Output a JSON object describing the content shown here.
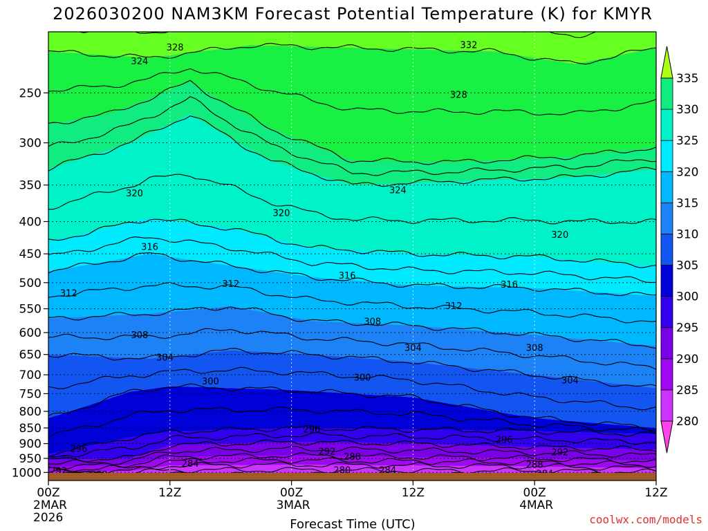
{
  "chart_data": {
    "type": "heatmap",
    "title": "2026030200 NAM3KM Forecast Potential Temperature (K) for KMYR",
    "xlabel": "Forecast Time (UTC)",
    "ylabel": "",
    "units": "K",
    "x_range_hours": [
      0,
      60
    ],
    "y_range_hpa": [
      1030,
      200
    ],
    "y_ticks": [
      250,
      300,
      350,
      400,
      450,
      500,
      550,
      600,
      650,
      700,
      750,
      800,
      850,
      900,
      950,
      1000
    ],
    "x_ticks": [
      {
        "hour": 0,
        "lines": [
          "00Z",
          "2MAR",
          "2026"
        ]
      },
      {
        "hour": 12,
        "lines": [
          "12Z"
        ]
      },
      {
        "hour": 24,
        "lines": [
          "00Z",
          "3MAR"
        ]
      },
      {
        "hour": 36,
        "lines": [
          "12Z"
        ]
      },
      {
        "hour": 48,
        "lines": [
          "00Z",
          "4MAR"
        ]
      },
      {
        "hour": 60,
        "lines": [
          "12Z"
        ]
      }
    ],
    "colorbar": {
      "levels": [
        280,
        285,
        290,
        295,
        300,
        305,
        310,
        315,
        320,
        325,
        330,
        335
      ],
      "colors": [
        "#ff44ee",
        "#cc33ff",
        "#9f08f0",
        "#7a00e8",
        "#3300ee",
        "#0000d8",
        "#1255f0",
        "#1c82f6",
        "#00b8ff",
        "#00eaff",
        "#00f2c8",
        "#11ec80",
        "#18f044",
        "#66ff22",
        "#b0ff18"
      ]
    },
    "contour_labels": [
      {
        "value": "332",
        "hour": 41.5,
        "p": 210
      },
      {
        "value": "328",
        "hour": 12.5,
        "p": 212
      },
      {
        "value": "324",
        "hour": 9,
        "p": 223
      },
      {
        "value": "328",
        "hour": 40.5,
        "p": 252
      },
      {
        "value": "324",
        "hour": 34.5,
        "p": 357
      },
      {
        "value": "320",
        "hour": 8.5,
        "p": 361
      },
      {
        "value": "320",
        "hour": 23,
        "p": 388
      },
      {
        "value": "320",
        "hour": 50.5,
        "p": 420
      },
      {
        "value": "316",
        "hour": 10,
        "p": 439
      },
      {
        "value": "316",
        "hour": 29.5,
        "p": 488
      },
      {
        "value": "316",
        "hour": 45.5,
        "p": 504
      },
      {
        "value": "312",
        "hour": 18,
        "p": 503
      },
      {
        "value": "312",
        "hour": 2,
        "p": 520
      },
      {
        "value": "312",
        "hour": 40,
        "p": 545
      },
      {
        "value": "308",
        "hour": 32,
        "p": 577
      },
      {
        "value": "308",
        "hour": 9,
        "p": 606
      },
      {
        "value": "308",
        "hour": 48,
        "p": 635
      },
      {
        "value": "304",
        "hour": 11.5,
        "p": 658
      },
      {
        "value": "304",
        "hour": 36,
        "p": 635
      },
      {
        "value": "304",
        "hour": 51.5,
        "p": 715
      },
      {
        "value": "300",
        "hour": 16,
        "p": 718
      },
      {
        "value": "300",
        "hour": 31,
        "p": 708
      },
      {
        "value": "296",
        "hour": 26,
        "p": 856
      },
      {
        "value": "296",
        "hour": 3,
        "p": 918
      },
      {
        "value": "296",
        "hour": 45,
        "p": 889
      },
      {
        "value": "292",
        "hour": 50.5,
        "p": 930
      },
      {
        "value": "292",
        "hour": 27.5,
        "p": 928
      },
      {
        "value": "292",
        "hour": 1,
        "p": 995
      },
      {
        "value": "288",
        "hour": 30,
        "p": 945
      },
      {
        "value": "288",
        "hour": 48,
        "p": 973
      },
      {
        "value": "288",
        "hour": 5,
        "p": 1010
      },
      {
        "value": "284",
        "hour": 14,
        "p": 970
      },
      {
        "value": "284",
        "hour": 33.5,
        "p": 993
      },
      {
        "value": "284",
        "hour": 49,
        "p": 1005
      },
      {
        "value": "280",
        "hour": 29,
        "p": 993
      }
    ]
  },
  "credit": "coolwx.com/models",
  "colors": {
    "ground": "#a25a26",
    "frame": "#000000",
    "grid": "#000000"
  }
}
